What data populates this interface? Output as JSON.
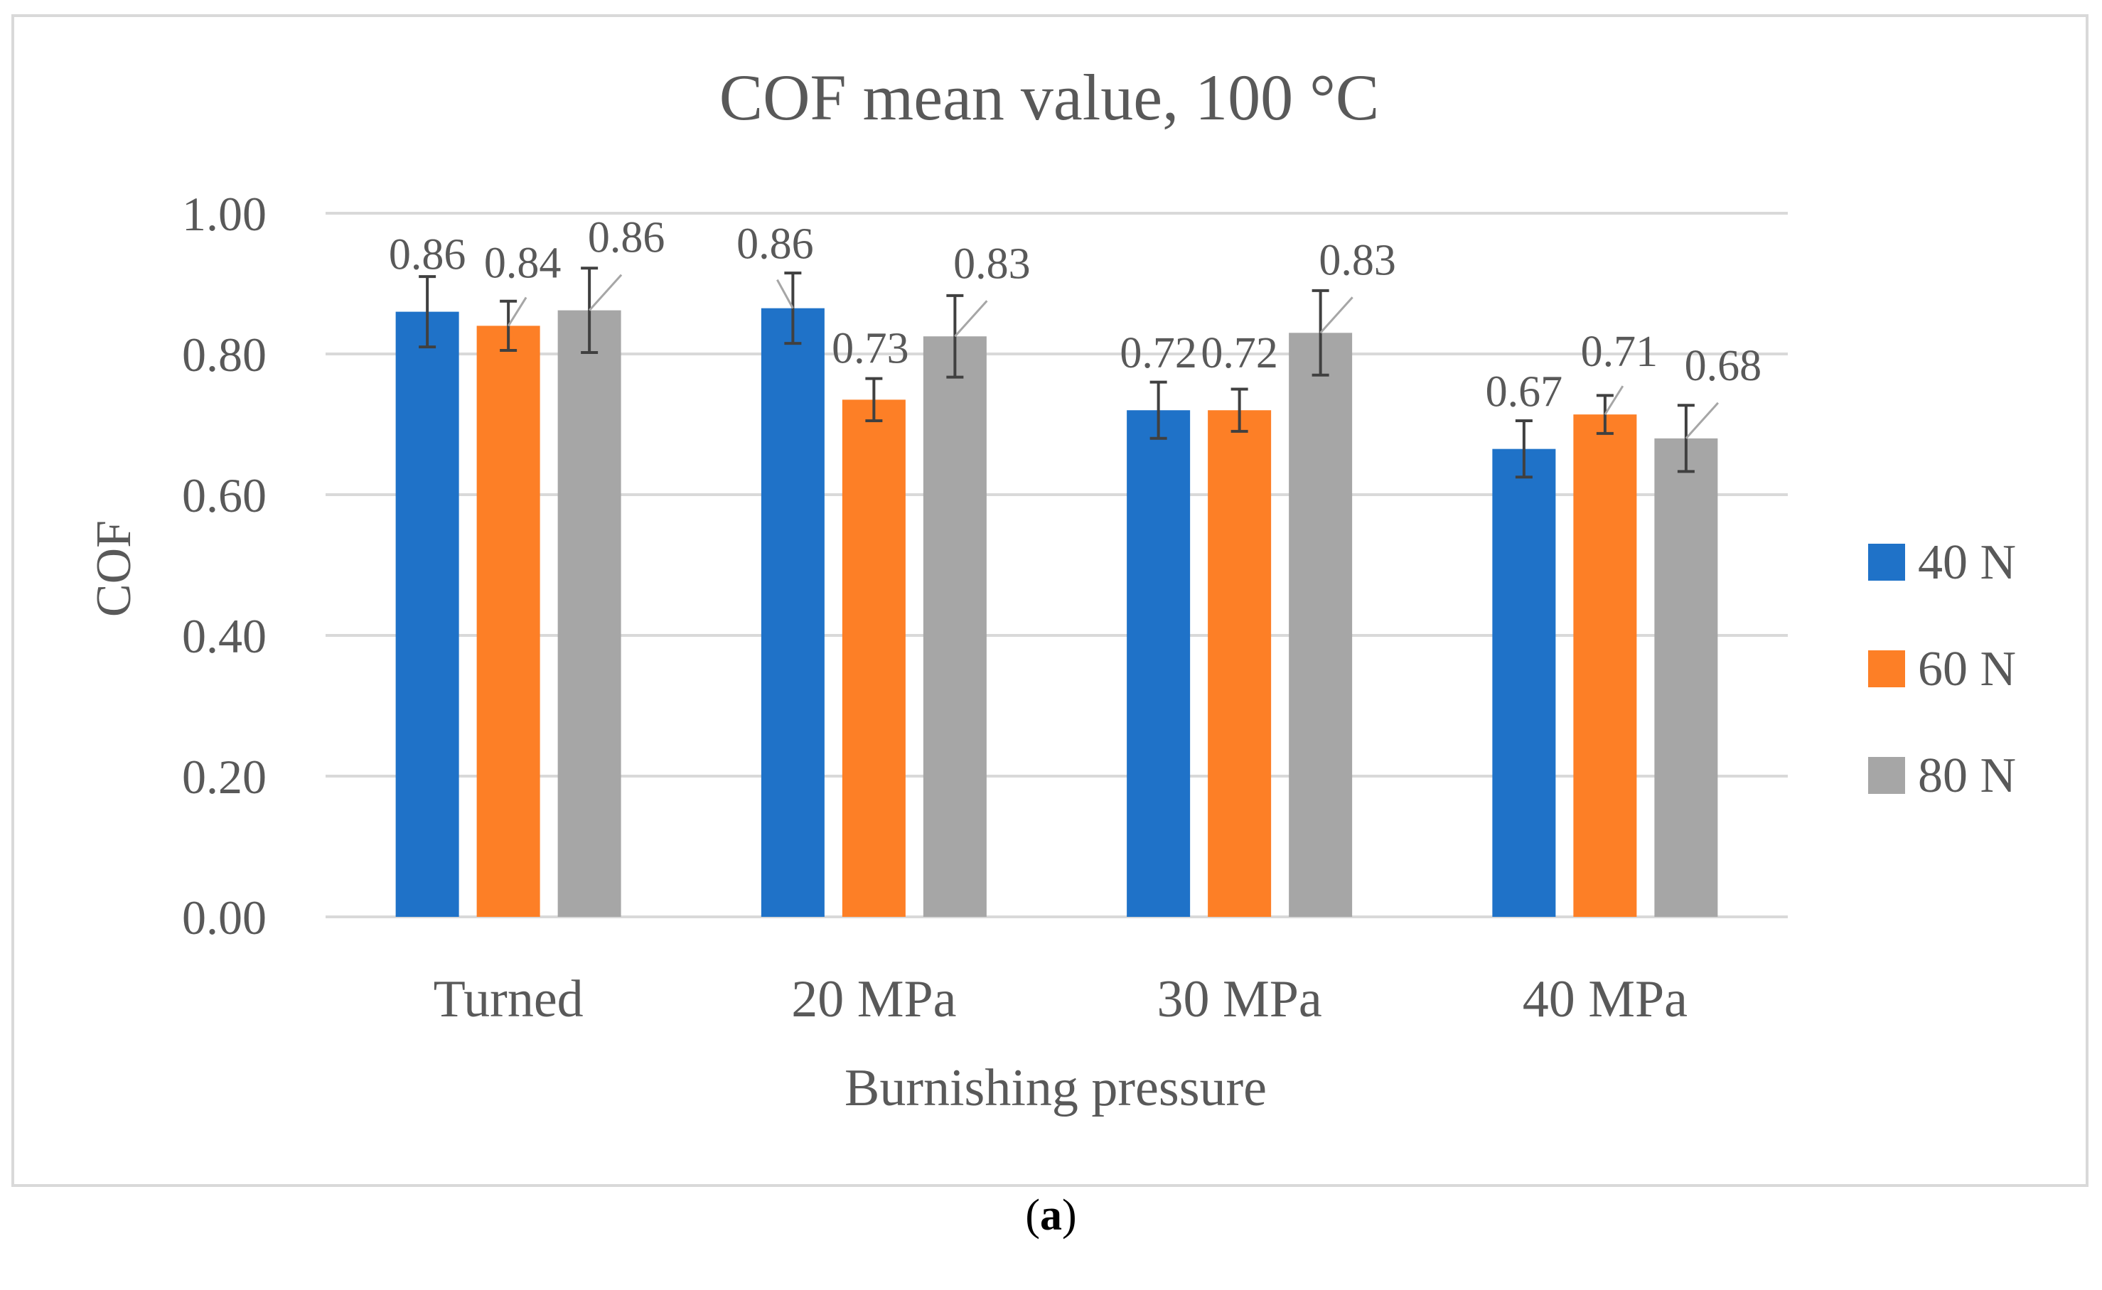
{
  "chart_data": {
    "type": "bar",
    "title": "COF mean value, 100 °C",
    "xlabel": "Burnishing pressure",
    "ylabel": "COF",
    "ylim": [
      0,
      1.0
    ],
    "yticks": [
      "0.00",
      "0.20",
      "0.40",
      "0.60",
      "0.80",
      "1.00"
    ],
    "ytick_values": [
      0,
      0.2,
      0.4,
      0.6,
      0.8,
      1.0
    ],
    "categories": [
      "Turned",
      "20 MPa",
      "30 MPa",
      "40 MPa"
    ],
    "series": [
      {
        "name": "40 N",
        "color": "#1f72c8",
        "values": [
          0.86,
          0.865,
          0.72,
          0.665
        ],
        "errors": [
          0.05,
          0.05,
          0.04,
          0.04
        ],
        "labels": [
          "0.86",
          "0.86",
          "0.72",
          "0.67"
        ]
      },
      {
        "name": "60 N",
        "color": "#fd7f26",
        "values": [
          0.84,
          0.735,
          0.72,
          0.714
        ],
        "errors": [
          0.035,
          0.03,
          0.03,
          0.027
        ],
        "labels": [
          "0.84",
          "0.73",
          "0.72",
          "0.71"
        ]
      },
      {
        "name": "80 N",
        "color": "#a6a6a6",
        "values": [
          0.862,
          0.825,
          0.83,
          0.68
        ],
        "errors": [
          0.06,
          0.058,
          0.06,
          0.047
        ],
        "labels": [
          "0.86",
          "0.83",
          "0.83",
          "0.68"
        ]
      }
    ],
    "legend_position": "right",
    "grid": true
  },
  "caption": {
    "text": "a"
  }
}
